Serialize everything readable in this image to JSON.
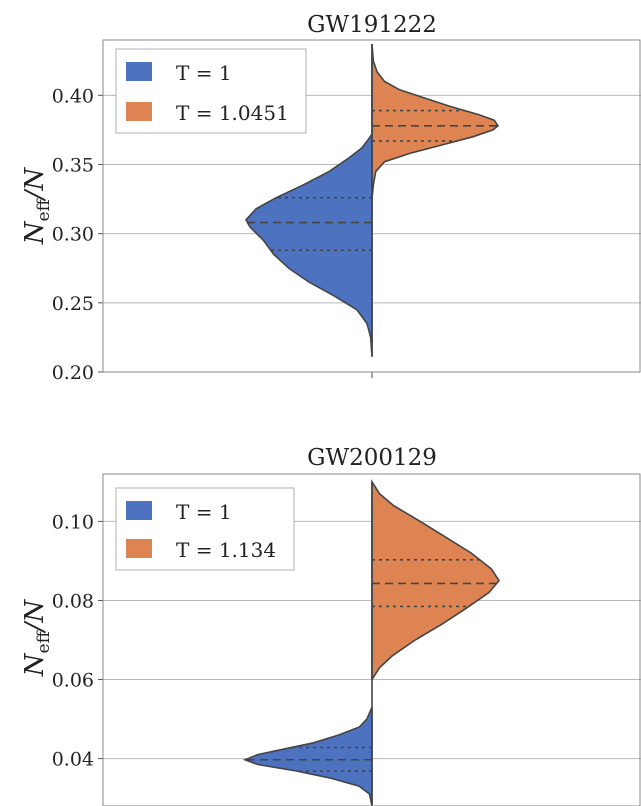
{
  "chart_data": [
    {
      "type": "violin",
      "title": "GW191222",
      "ylabel": "N_eff / N",
      "ylim": [
        0.2,
        0.44
      ],
      "yticks": [
        0.2,
        0.25,
        0.3,
        0.35,
        0.4
      ],
      "ytick_labels": [
        "0.20",
        "0.25",
        "0.30",
        "0.35",
        "0.40"
      ],
      "grid": true,
      "legend_position": "top-left",
      "series": [
        {
          "name": "T = 1",
          "side": "left",
          "color": "#4c72c0",
          "min": 0.211,
          "max": 0.372,
          "quartiles": [
            0.288,
            0.308,
            0.326
          ],
          "density": [
            [
              0.211,
              0.0
            ],
            [
              0.225,
              0.01
            ],
            [
              0.235,
              0.04
            ],
            [
              0.245,
              0.12
            ],
            [
              0.255,
              0.3
            ],
            [
              0.265,
              0.5
            ],
            [
              0.275,
              0.66
            ],
            [
              0.285,
              0.78
            ],
            [
              0.295,
              0.86
            ],
            [
              0.305,
              0.97
            ],
            [
              0.31,
              1.0
            ],
            [
              0.318,
              0.92
            ],
            [
              0.326,
              0.76
            ],
            [
              0.335,
              0.55
            ],
            [
              0.345,
              0.34
            ],
            [
              0.355,
              0.18
            ],
            [
              0.362,
              0.08
            ],
            [
              0.368,
              0.03
            ],
            [
              0.372,
              0.0
            ]
          ]
        },
        {
          "name": "T = 1.0451",
          "side": "right",
          "color": "#dd8452",
          "min": 0.325,
          "max": 0.437,
          "quartiles": [
            0.367,
            0.378,
            0.389
          ],
          "density": [
            [
              0.325,
              0.0
            ],
            [
              0.335,
              0.01
            ],
            [
              0.345,
              0.03
            ],
            [
              0.352,
              0.1
            ],
            [
              0.358,
              0.3
            ],
            [
              0.364,
              0.55
            ],
            [
              0.37,
              0.8
            ],
            [
              0.375,
              0.96
            ],
            [
              0.378,
              1.0
            ],
            [
              0.382,
              0.97
            ],
            [
              0.386,
              0.85
            ],
            [
              0.392,
              0.62
            ],
            [
              0.398,
              0.42
            ],
            [
              0.404,
              0.22
            ],
            [
              0.41,
              0.1
            ],
            [
              0.417,
              0.04
            ],
            [
              0.425,
              0.01
            ],
            [
              0.437,
              0.0
            ]
          ]
        }
      ]
    },
    {
      "type": "violin",
      "title": "GW200129",
      "ylabel": "N_eff / N",
      "ylim": [
        0.028,
        0.112
      ],
      "yticks": [
        0.04,
        0.06,
        0.08,
        0.1
      ],
      "ytick_labels": [
        "0.04",
        "0.06",
        "0.08",
        "0.10"
      ],
      "grid": true,
      "legend_position": "top-left",
      "series": [
        {
          "name": "T = 1",
          "side": "left",
          "color": "#4c72c0",
          "min": 0.028,
          "max": 0.053,
          "quartiles": [
            0.0368,
            0.0397,
            0.0428
          ],
          "density": [
            [
              0.028,
              0.0
            ],
            [
              0.031,
              0.02
            ],
            [
              0.033,
              0.1
            ],
            [
              0.035,
              0.32
            ],
            [
              0.037,
              0.62
            ],
            [
              0.0385,
              0.9
            ],
            [
              0.0397,
              1.0
            ],
            [
              0.041,
              0.9
            ],
            [
              0.0425,
              0.68
            ],
            [
              0.044,
              0.46
            ],
            [
              0.046,
              0.26
            ],
            [
              0.048,
              0.1
            ],
            [
              0.05,
              0.04
            ],
            [
              0.053,
              0.0
            ]
          ]
        },
        {
          "name": "T = 1.134",
          "side": "right",
          "color": "#dd8452",
          "min": 0.06,
          "max": 0.11,
          "quartiles": [
            0.0785,
            0.0843,
            0.0903
          ],
          "density": [
            [
              0.06,
              0.0
            ],
            [
              0.063,
              0.06
            ],
            [
              0.066,
              0.16
            ],
            [
              0.07,
              0.34
            ],
            [
              0.074,
              0.55
            ],
            [
              0.078,
              0.74
            ],
            [
              0.082,
              0.92
            ],
            [
              0.085,
              1.0
            ],
            [
              0.088,
              0.94
            ],
            [
              0.092,
              0.78
            ],
            [
              0.096,
              0.58
            ],
            [
              0.1,
              0.38
            ],
            [
              0.104,
              0.17
            ],
            [
              0.107,
              0.06
            ],
            [
              0.11,
              0.0
            ]
          ]
        }
      ]
    }
  ]
}
